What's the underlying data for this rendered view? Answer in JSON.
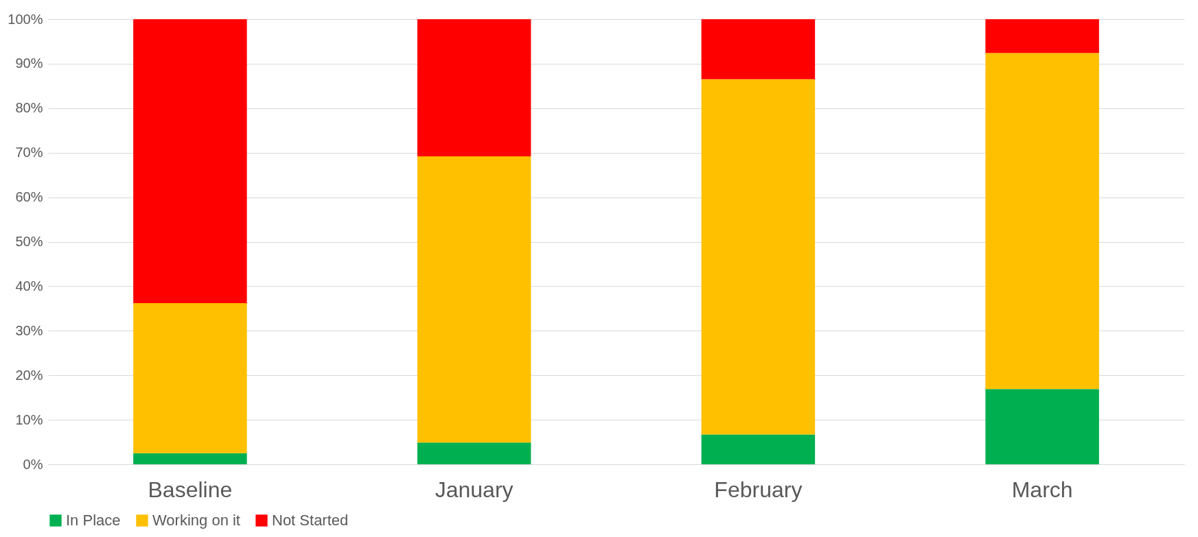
{
  "chart_data": {
    "type": "bar",
    "stacked": true,
    "categories": [
      "Baseline",
      "January",
      "February",
      "March"
    ],
    "series": [
      {
        "name": "In Place",
        "color": "#00b050",
        "values": [
          2.5,
          4.9,
          6.7,
          16.9
        ]
      },
      {
        "name": "Working on it",
        "color": "#ffc000",
        "values": [
          33.7,
          64.3,
          79.8,
          75.5
        ]
      },
      {
        "name": "Not Started",
        "color": "#ff0000",
        "values": [
          63.8,
          30.8,
          13.5,
          7.6
        ]
      }
    ],
    "ylim": [
      0,
      100
    ],
    "yticks": [
      {
        "value": 0,
        "label": "0%"
      },
      {
        "value": 10,
        "label": "10%"
      },
      {
        "value": 20,
        "label": "20%"
      },
      {
        "value": 30,
        "label": "30%"
      },
      {
        "value": 40,
        "label": "40%"
      },
      {
        "value": 50,
        "label": "50%"
      },
      {
        "value": 60,
        "label": "60%"
      },
      {
        "value": 70,
        "label": "70%"
      },
      {
        "value": 80,
        "label": "80%"
      },
      {
        "value": 90,
        "label": "90%"
      },
      {
        "value": 100,
        "label": "100%"
      }
    ],
    "grid": "y",
    "legend": "bottom"
  }
}
